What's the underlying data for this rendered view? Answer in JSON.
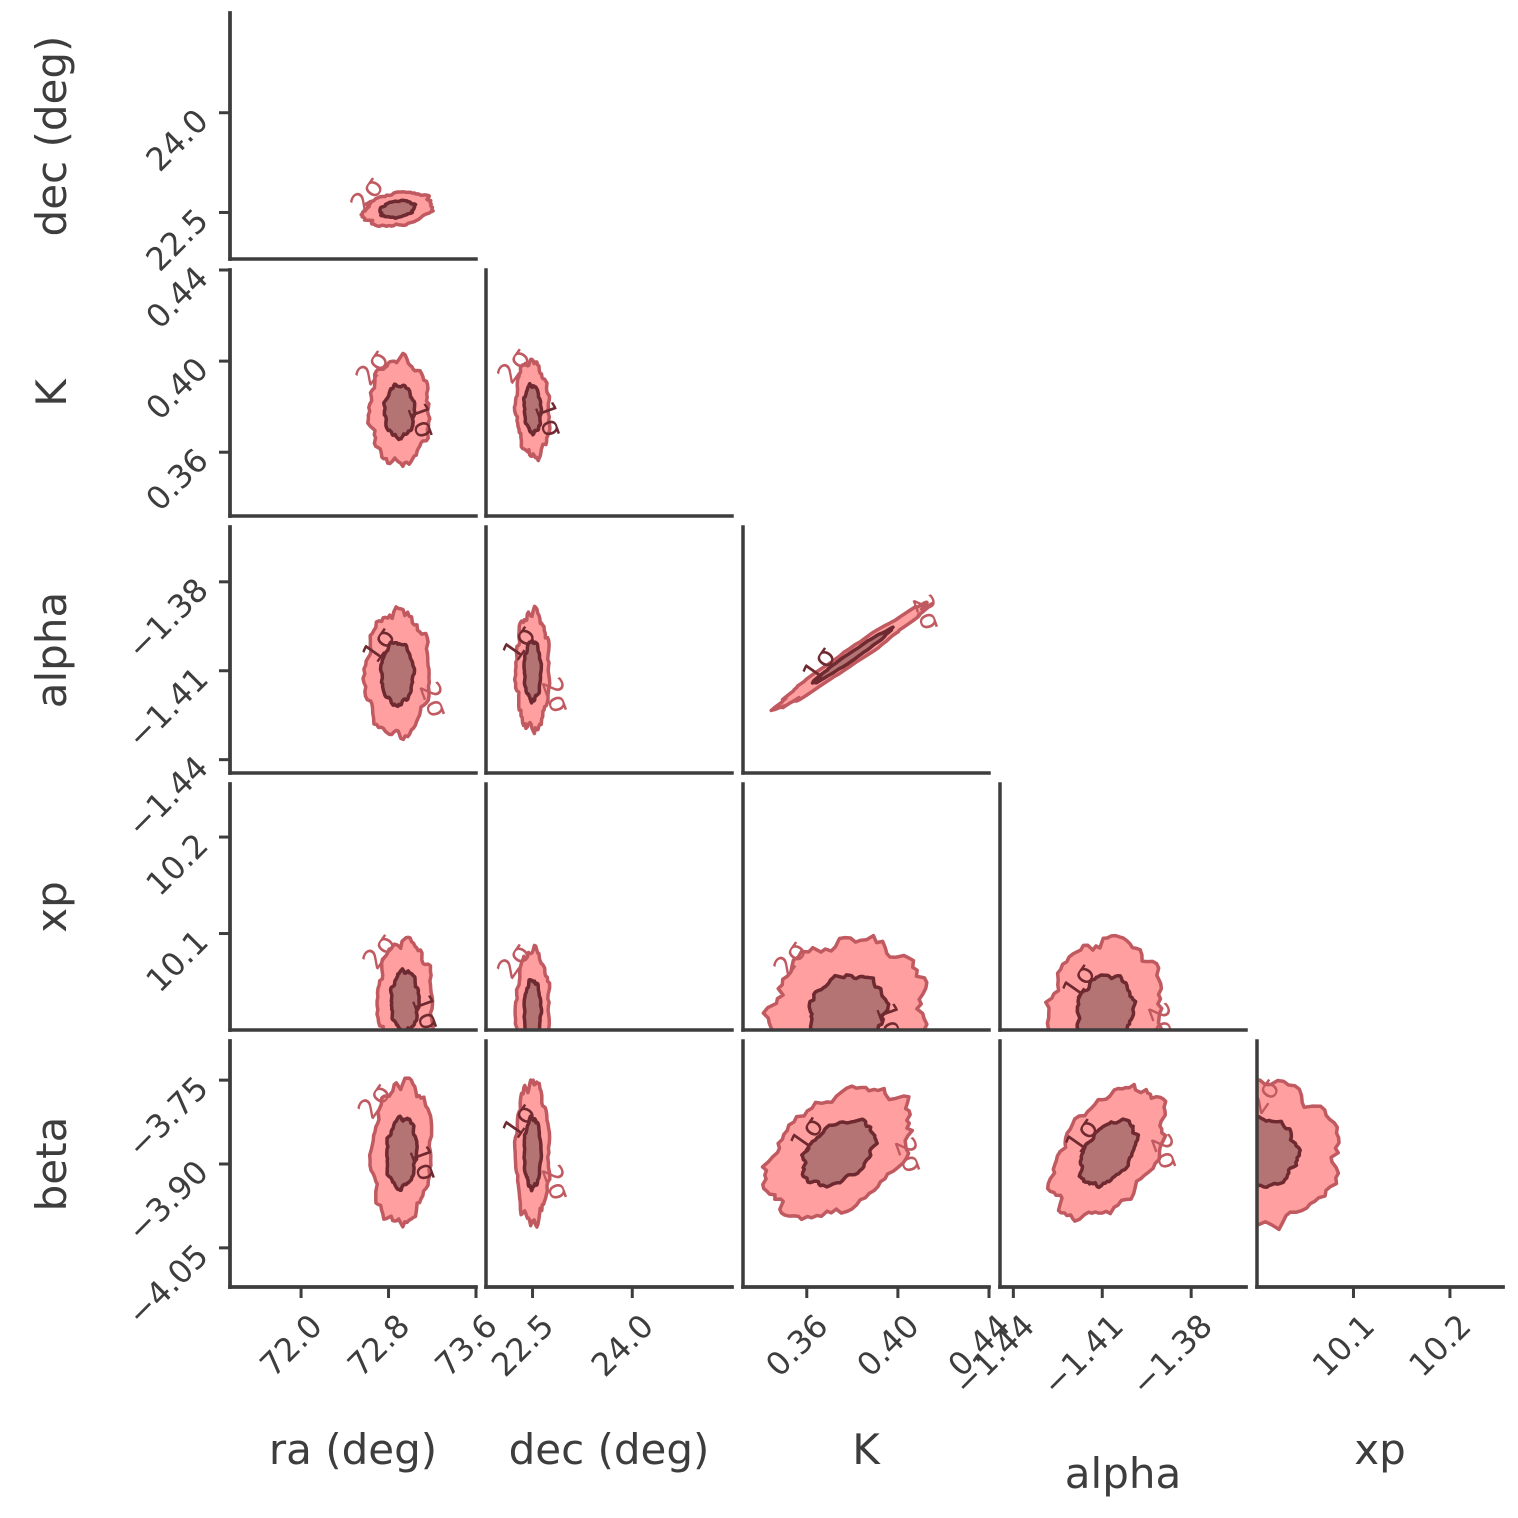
{
  "chart_data": {
    "type": "corner",
    "contour_levels": [
      "1σ",
      "2σ"
    ],
    "colors": {
      "fill_outer": "#ff9a9a",
      "fill_inner": "#b07272",
      "line_outer": "#c05a60",
      "line_inner": "#6e2a30",
      "axis": "#3d3d3d"
    },
    "parameters": [
      {
        "name": "ra (deg)",
        "ticks": [
          72.0,
          72.8,
          73.6
        ],
        "tick_labels": [
          "72.0",
          "72.8",
          "73.6"
        ],
        "range": [
          71.35,
          73.6
        ]
      },
      {
        "name": "dec (deg)",
        "ticks": [
          22.5,
          24.0
        ],
        "tick_labels": [
          "22.5",
          "24.0"
        ],
        "range": [
          21.8,
          25.5
        ]
      },
      {
        "name": "K",
        "ticks": [
          0.36,
          0.4,
          0.44
        ],
        "tick_labels": [
          "0.36",
          "0.40",
          "0.44"
        ],
        "range": [
          0.332,
          0.44
        ]
      },
      {
        "name": "alpha",
        "ticks": [
          -1.44,
          -1.41,
          -1.38
        ],
        "tick_labels": [
          "−1.44",
          "−1.41",
          "−1.38"
        ],
        "range": [
          -1.4445,
          -1.3615
        ]
      },
      {
        "name": "xp",
        "ticks": [
          10.1,
          10.2
        ],
        "tick_labels": [
          "10.1",
          "10.2"
        ],
        "range": [
          10.0,
          10.255
        ]
      },
      {
        "name": "beta",
        "ticks": [
          -3.75,
          -3.9,
          -4.05
        ],
        "tick_labels": [
          "−3.75",
          "−3.90",
          "−4.05"
        ],
        "range": [
          -4.12,
          -3.68
        ]
      }
    ],
    "panels": [
      {
        "x": "ra (deg)",
        "y": "dec (deg)",
        "center": [
          72.88,
          22.55
        ],
        "sigma": [
          0.15,
          0.12
        ],
        "rho": 0.25,
        "labels": [
          "2σ"
        ]
      },
      {
        "x": "ra (deg)",
        "y": "K",
        "center": [
          72.9,
          0.378
        ],
        "sigma": [
          0.13,
          0.011
        ],
        "rho": 0.0,
        "labels": [
          "2σ",
          "1σ"
        ]
      },
      {
        "x": "dec (deg)",
        "y": "K",
        "center": [
          22.5,
          0.379
        ],
        "sigma": [
          0.12,
          0.01
        ],
        "rho": -0.1,
        "labels": [
          "2σ",
          "1σ"
        ]
      },
      {
        "x": "ra (deg)",
        "y": "alpha",
        "center": [
          72.88,
          -1.411
        ],
        "sigma": [
          0.14,
          0.01
        ],
        "rho": 0.0,
        "labels": [
          "1σ",
          "2σ"
        ]
      },
      {
        "x": "dec (deg)",
        "y": "alpha",
        "center": [
          22.5,
          -1.41
        ],
        "sigma": [
          0.12,
          0.0095
        ],
        "rho": 0.0,
        "labels": [
          "1σ",
          "2σ"
        ]
      },
      {
        "x": "K",
        "y": "alpha",
        "center": [
          0.38,
          -1.405
        ],
        "sigma": [
          0.016,
          0.0085
        ],
        "rho": 0.985,
        "labels": [
          "1σ",
          "2σ"
        ]
      },
      {
        "x": "ra (deg)",
        "y": "xp",
        "center": [
          72.95,
          10.03
        ],
        "sigma": [
          0.12,
          0.03
        ],
        "rho": 0.0,
        "labels": [
          "2σ",
          "1σ"
        ]
      },
      {
        "x": "dec (deg)",
        "y": "xp",
        "center": [
          22.5,
          10.02
        ],
        "sigma": [
          0.12,
          0.03
        ],
        "rho": 0.0,
        "labels": [
          "2σ"
        ]
      },
      {
        "x": "K",
        "y": "xp",
        "center": [
          0.378,
          10.02
        ],
        "sigma": [
          0.016,
          0.035
        ],
        "rho": 0.1,
        "labels": [
          "2σ",
          "1σ"
        ]
      },
      {
        "x": "alpha",
        "y": "xp",
        "center": [
          -1.409,
          10.02
        ],
        "sigma": [
          0.009,
          0.035
        ],
        "rho": 0.1,
        "labels": [
          "1σ",
          "2σ"
        ]
      },
      {
        "x": "ra (deg)",
        "y": "beta",
        "center": [
          72.92,
          -3.88
        ],
        "sigma": [
          0.13,
          0.06
        ],
        "rho": 0.1,
        "labels": [
          "2σ",
          "1σ"
        ]
      },
      {
        "x": "dec (deg)",
        "y": "beta",
        "center": [
          22.5,
          -3.88
        ],
        "sigma": [
          0.12,
          0.06
        ],
        "rho": 0.0,
        "labels": [
          "1σ",
          "2σ"
        ]
      },
      {
        "x": "K",
        "y": "beta",
        "center": [
          0.374,
          -3.88
        ],
        "sigma": [
          0.015,
          0.055
        ],
        "rho": 0.4,
        "labels": [
          "1σ",
          "2σ"
        ]
      },
      {
        "x": "alpha",
        "y": "beta",
        "center": [
          -1.408,
          -3.88
        ],
        "sigma": [
          0.009,
          0.055
        ],
        "rho": 0.45,
        "labels": [
          "1σ",
          "2σ"
        ]
      },
      {
        "x": "xp",
        "y": "beta",
        "center": [
          10.0,
          -3.88
        ],
        "sigma": [
          0.04,
          0.06
        ],
        "rho": 0.0,
        "labels": [
          "2σ"
        ]
      }
    ]
  }
}
